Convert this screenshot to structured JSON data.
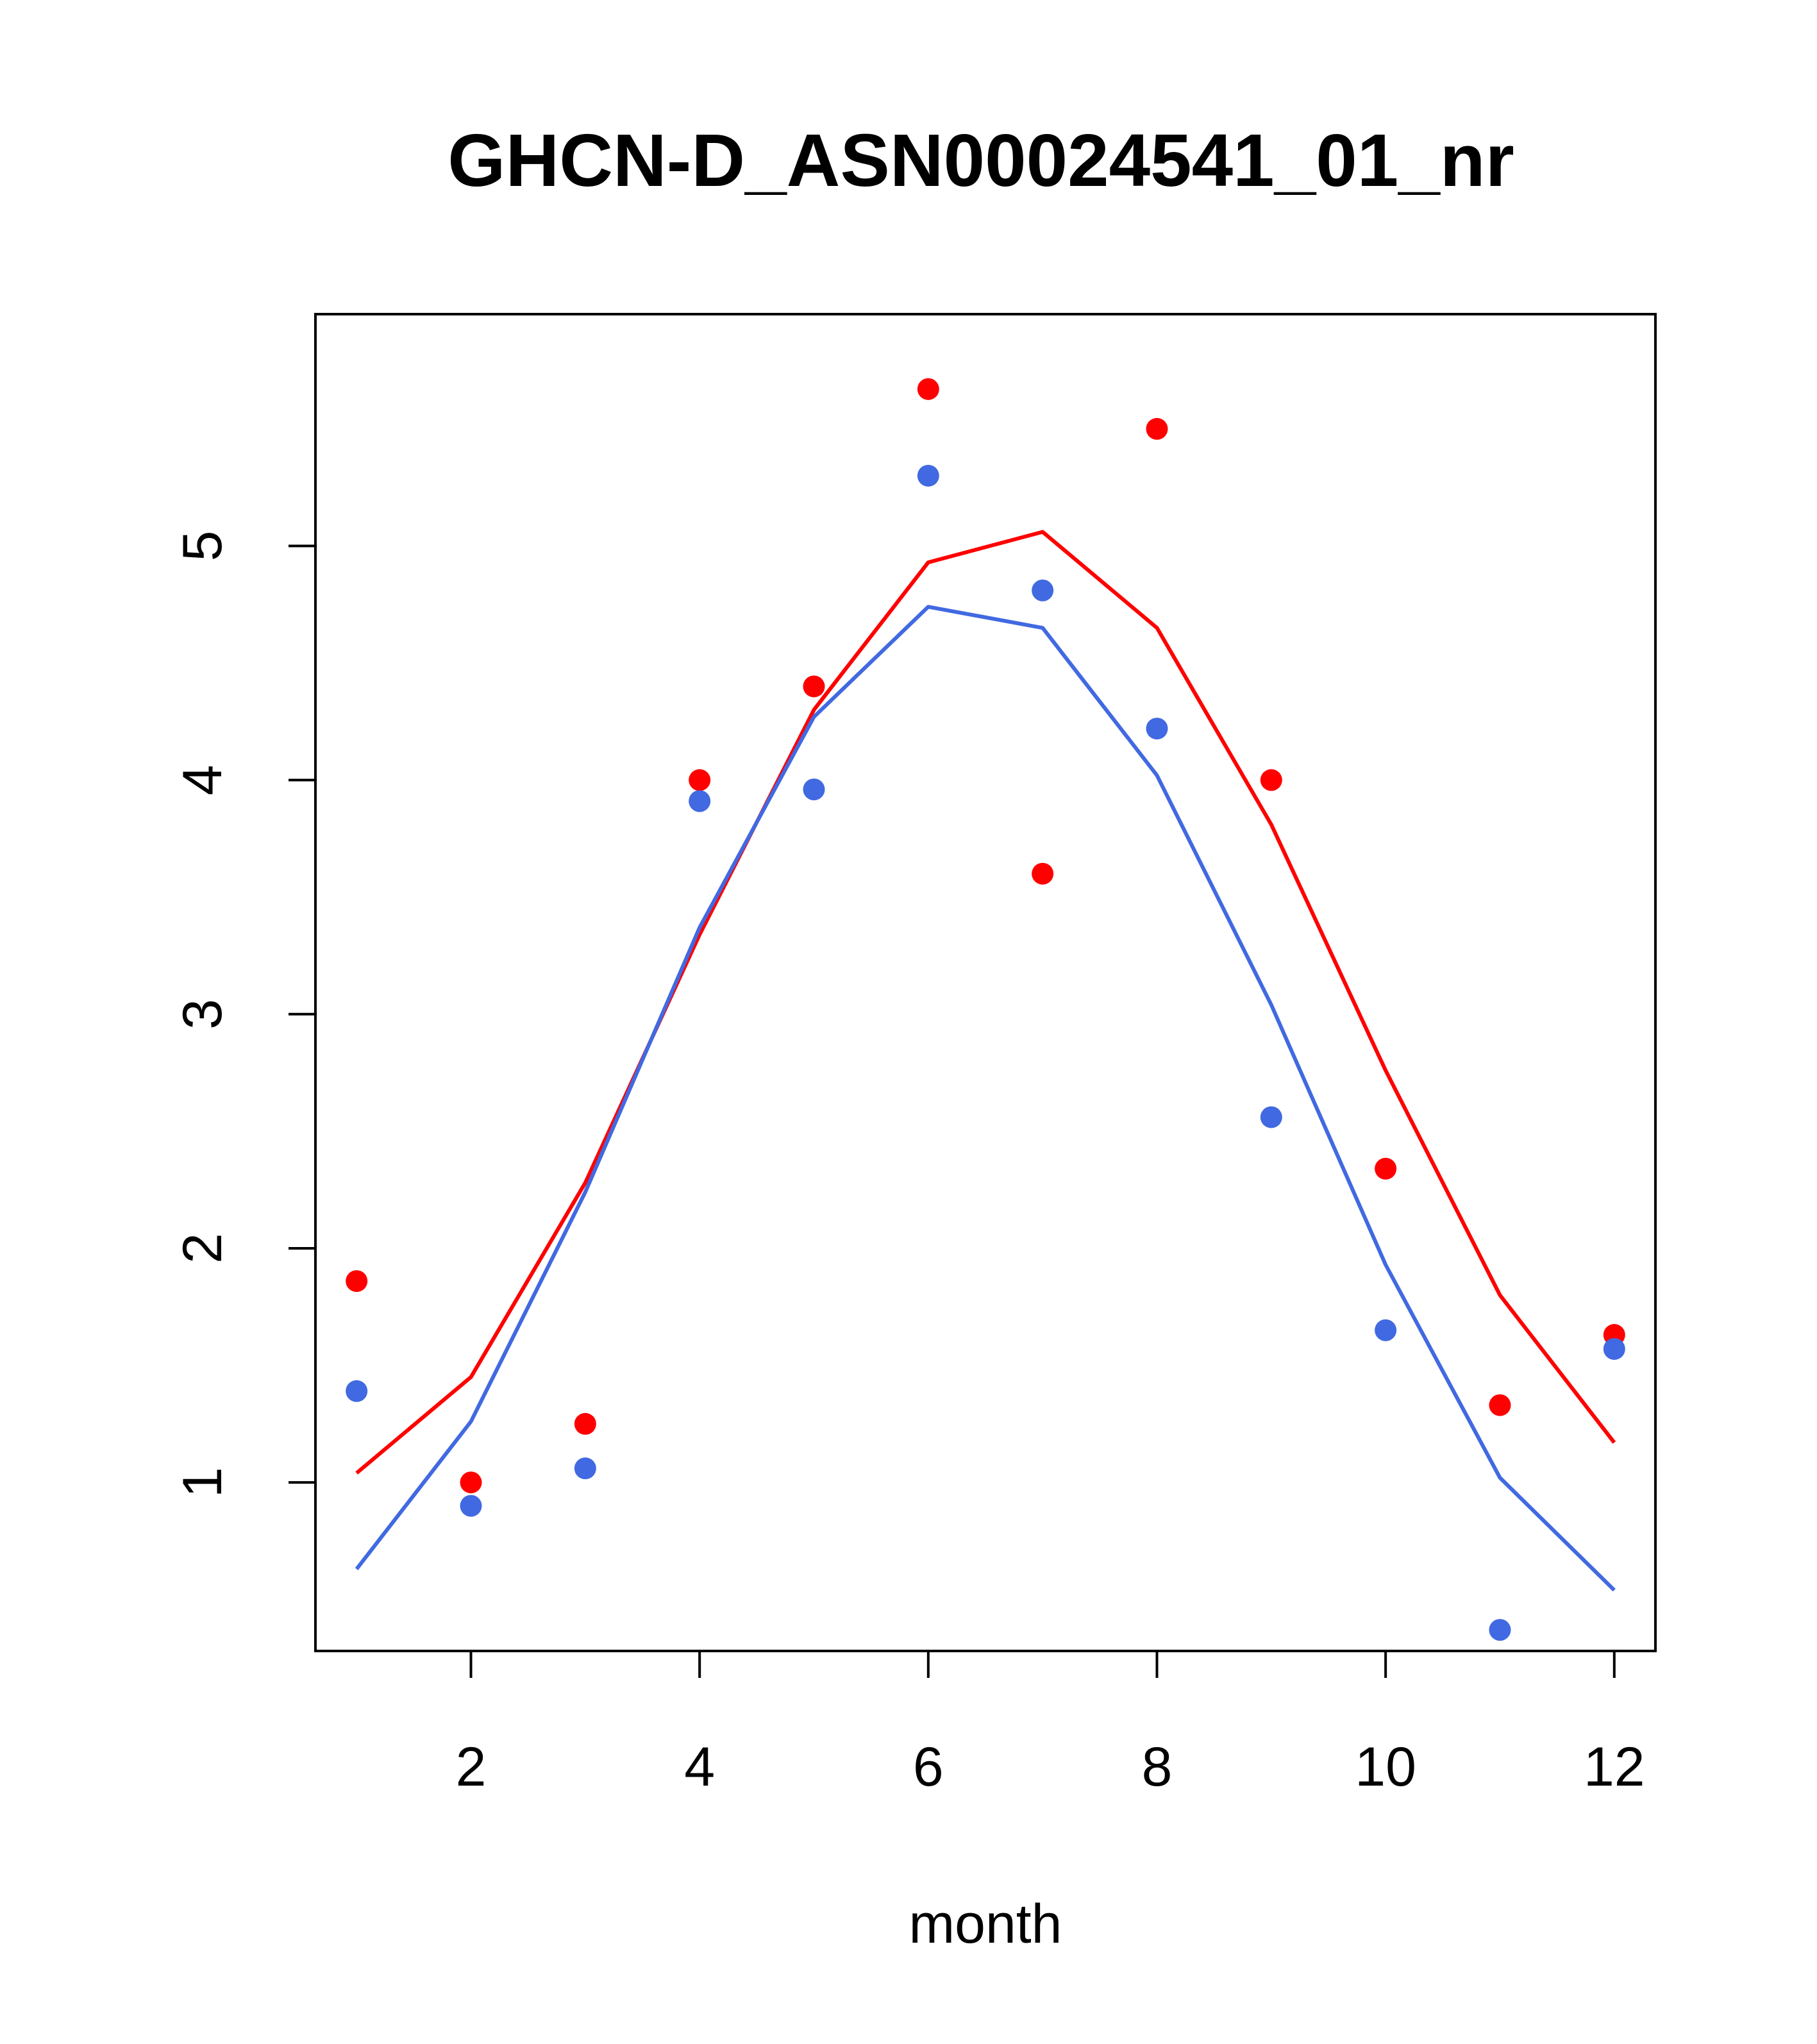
{
  "chart_data": {
    "type": "scatter",
    "title": "GHCN-D_ASN00024541_01_nr",
    "xlabel": "month",
    "ylabel": "",
    "xlim": [
      0.64,
      12.36
    ],
    "ylim": [
      0.28,
      5.99
    ],
    "x_ticks": [
      2,
      4,
      6,
      8,
      10,
      12
    ],
    "y_ticks": [
      1,
      2,
      3,
      4,
      5
    ],
    "grid": false,
    "legend": "none",
    "series": [
      {
        "kind": "points",
        "color": "#FF0000",
        "x": [
          1,
          2,
          3,
          4,
          5,
          6,
          7,
          8,
          9,
          10,
          11,
          12
        ],
        "y": [
          1.86,
          1.0,
          1.25,
          4.0,
          4.4,
          5.67,
          3.6,
          5.5,
          4.0,
          2.34,
          1.33,
          1.63
        ]
      },
      {
        "kind": "points",
        "color": "#4169E1",
        "x": [
          1,
          2,
          3,
          4,
          5,
          6,
          7,
          8,
          9,
          10,
          11,
          12
        ],
        "y": [
          1.39,
          0.9,
          1.06,
          3.91,
          3.96,
          5.3,
          4.81,
          4.22,
          2.56,
          1.65,
          0.37,
          1.57
        ]
      },
      {
        "kind": "line",
        "color": "#FF0000",
        "x": [
          1,
          2,
          3,
          4,
          5,
          6,
          7,
          8,
          9,
          10,
          11,
          12
        ],
        "y": [
          1.04,
          1.45,
          2.28,
          3.34,
          4.3,
          4.93,
          5.06,
          4.65,
          3.81,
          2.76,
          1.8,
          1.17
        ]
      },
      {
        "kind": "line",
        "color": "#4169E1",
        "x": [
          1,
          2,
          3,
          4,
          5,
          6,
          7,
          8,
          9,
          10,
          11,
          12
        ],
        "y": [
          0.63,
          1.26,
          2.24,
          3.37,
          4.27,
          4.74,
          4.65,
          4.02,
          3.04,
          1.93,
          1.02,
          0.54
        ]
      }
    ]
  }
}
